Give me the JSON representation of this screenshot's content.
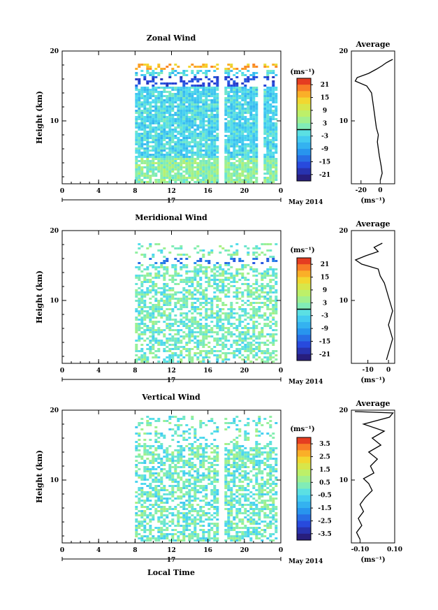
{
  "figure": {
    "xlabel": "Local Time",
    "ylabel": "Height (km)",
    "date_label": "May 2014",
    "day_label": "17",
    "avg_title": "Average",
    "colorbar_unit": "(ms⁻¹)",
    "avg_unit": "(ms⁻¹)",
    "x_ticks": [
      "0",
      "4",
      "8",
      "12",
      "16",
      "20",
      "0"
    ],
    "y_ticks": [
      "20",
      "10"
    ]
  },
  "chart_data": [
    {
      "type": "heatmap",
      "title": "Zonal Wind",
      "ylabel": "Height (km)",
      "xlim_hours": [
        0,
        24
      ],
      "ylim_km": [
        1,
        20
      ],
      "data_start_hour": 8,
      "gap_hours": [
        17.5,
        21.7
      ],
      "colorbar": {
        "ticks": [
          21,
          15,
          9,
          3,
          -3,
          -9,
          -15,
          -21
        ],
        "range": [
          -24,
          24
        ],
        "zero_line": true
      },
      "average_profile": {
        "xticks": [
          -20,
          0
        ],
        "xlim": [
          -30,
          15
        ],
        "points": [
          [
            0,
            1.5
          ],
          [
            2,
            2.5
          ],
          [
            1,
            3.5
          ],
          [
            -1,
            5
          ],
          [
            -2,
            6
          ],
          [
            -3,
            7
          ],
          [
            -2,
            8
          ],
          [
            -4,
            9
          ],
          [
            -5,
            10
          ],
          [
            -6,
            11
          ],
          [
            -7,
            12
          ],
          [
            -8,
            13
          ],
          [
            -9,
            14
          ],
          [
            -14,
            15
          ],
          [
            -26,
            15.7
          ],
          [
            -24,
            16.2
          ],
          [
            -12,
            16.8
          ],
          [
            -4,
            17.4
          ],
          [
            2,
            17.9
          ],
          [
            6,
            18.3
          ],
          [
            10,
            18.6
          ],
          [
            13,
            18.8
          ]
        ]
      }
    },
    {
      "type": "heatmap",
      "title": "Meridional Wind",
      "ylabel": "Height (km)",
      "xlim_hours": [
        0,
        24
      ],
      "ylim_km": [
        1,
        20
      ],
      "data_start_hour": 8,
      "gap_hours": [],
      "colorbar": {
        "ticks": [
          21,
          15,
          9,
          3,
          -3,
          -9,
          -15,
          -21
        ],
        "range": [
          -24,
          24
        ],
        "zero_line": true
      },
      "average_profile": {
        "xticks": [
          -10,
          0
        ],
        "xlim": [
          -18,
          3
        ],
        "points": [
          [
            -1,
            1.5
          ],
          [
            0,
            2.5
          ],
          [
            1,
            3.5
          ],
          [
            2,
            4.5
          ],
          [
            1,
            5.5
          ],
          [
            0,
            6.5
          ],
          [
            1,
            7.5
          ],
          [
            2,
            8.5
          ],
          [
            1,
            9.5
          ],
          [
            0,
            10.5
          ],
          [
            -1,
            11.5
          ],
          [
            -2,
            12.5
          ],
          [
            -4,
            13.5
          ],
          [
            -5,
            14.5
          ],
          [
            -13,
            15.2
          ],
          [
            -16,
            15.8
          ],
          [
            -11,
            16.4
          ],
          [
            -5,
            17
          ],
          [
            -7,
            17.6
          ],
          [
            -3,
            18.2
          ]
        ]
      }
    },
    {
      "type": "heatmap",
      "title": "Vertical Wind",
      "ylabel": "Height (km)",
      "xlim_hours": [
        0,
        24
      ],
      "ylim_km": [
        1,
        20
      ],
      "data_start_hour": 8,
      "gap_hours": [
        17.5
      ],
      "colorbar": {
        "ticks": [
          3.5,
          2.5,
          1.5,
          0.5,
          -0.5,
          -1.5,
          -2.5,
          -3.5
        ],
        "range": [
          -4,
          4
        ],
        "zero_line": false
      },
      "average_profile": {
        "xticks": [
          -0.1,
          0.1
        ],
        "xtick_labels": [
          "-0.10",
          "0.10"
        ],
        "xlim": [
          -0.15,
          0.1
        ],
        "points": [
          [
            -0.1,
            1.5
          ],
          [
            -0.12,
            2.5
          ],
          [
            -0.09,
            3.5
          ],
          [
            -0.11,
            4.5
          ],
          [
            -0.08,
            5.5
          ],
          [
            -0.1,
            6.5
          ],
          [
            -0.07,
            7.5
          ],
          [
            -0.03,
            8.5
          ],
          [
            -0.05,
            9.5
          ],
          [
            -0.08,
            10.2
          ],
          [
            -0.02,
            11
          ],
          [
            -0.04,
            12
          ],
          [
            0.0,
            13
          ],
          [
            -0.05,
            14
          ],
          [
            0.02,
            15
          ],
          [
            -0.03,
            16
          ],
          [
            0.04,
            17
          ],
          [
            -0.08,
            18
          ],
          [
            0.07,
            19
          ],
          [
            0.09,
            19.6
          ],
          [
            -0.13,
            19.8
          ]
        ]
      }
    }
  ]
}
